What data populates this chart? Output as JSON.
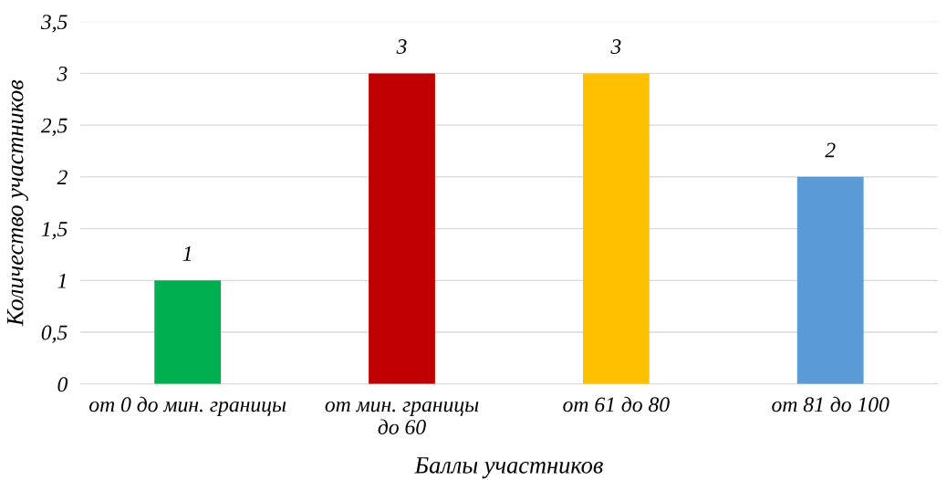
{
  "chart_data": {
    "type": "bar",
    "xlabel": "Баллы участников",
    "ylabel": "Количество участников",
    "categories": [
      "от 0 до мин. границы",
      "от мин. границы\nдо 60",
      "от 61 до 80",
      "от 81 до 100"
    ],
    "values": [
      1,
      3,
      3,
      2
    ],
    "colors": [
      "#00b050",
      "#c00000",
      "#ffc000",
      "#5b9bd5"
    ],
    "ylim": [
      0,
      3.5
    ],
    "yticks": [
      0,
      {
        "value": 0.5,
        "label": "0,5"
      },
      1,
      {
        "value": 1.5,
        "label": "1,5"
      },
      2,
      {
        "value": 2.5,
        "label": "2,5"
      },
      3,
      {
        "value": 3.5,
        "label": "3,5"
      }
    ],
    "grid": "y",
    "data_labels": true
  }
}
